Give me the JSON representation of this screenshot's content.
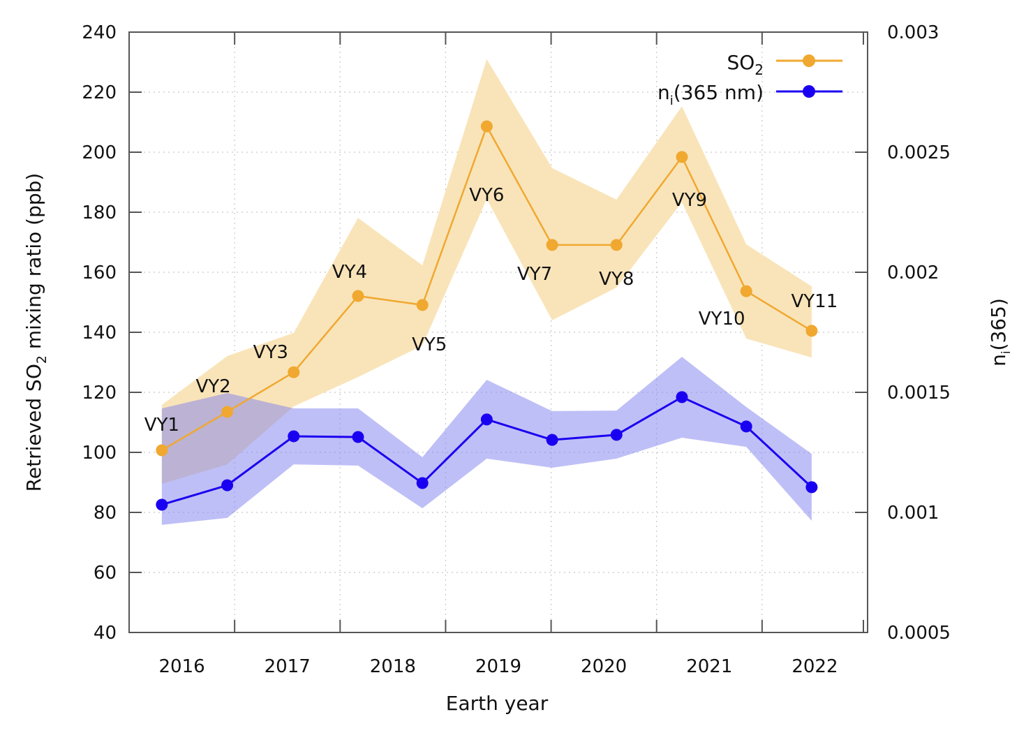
{
  "chart_data": {
    "type": "line",
    "title": "",
    "xlabel": "Earth year",
    "ylabel_left": {
      "main": "Retrieved SO",
      "sub": "2",
      "rest": " mixing ratio (ppb)"
    },
    "ylabel_right": {
      "main": "n",
      "sub": "i",
      "rest": "(365)"
    },
    "xlim": [
      2016,
      2023
    ],
    "x_tick_labels": [
      "2016",
      "2017",
      "2018",
      "2019",
      "2020",
      "2021",
      "2022"
    ],
    "x_tick_label_positions": [
      2016.5,
      2017.5,
      2018.5,
      2019.5,
      2020.5,
      2021.5,
      2022.5
    ],
    "x_tick_marks": [
      2017,
      2018,
      2019,
      2020,
      2021,
      2022,
      2023
    ],
    "ylim_left": [
      40,
      240
    ],
    "y_ticks_left": [
      40,
      60,
      80,
      100,
      120,
      140,
      160,
      180,
      200,
      220,
      240
    ],
    "y_tick_labels_left": [
      "40",
      "60",
      "80",
      "100",
      "120",
      "140",
      "160",
      "180",
      "200",
      "220",
      "240"
    ],
    "ylim_right": [
      0.0005,
      0.003
    ],
    "y_ticks_right": [
      0.0005,
      0.001,
      0.0015,
      0.002,
      0.0025,
      0.003
    ],
    "y_tick_labels_right": [
      "0.0005",
      "0.001",
      "0.0015",
      "0.002",
      "0.0025",
      "0.003"
    ],
    "grid": true,
    "legend_position": "top-right",
    "x": [
      2016.31,
      2016.93,
      2017.56,
      2018.17,
      2018.78,
      2019.39,
      2020.01,
      2020.62,
      2021.24,
      2021.85,
      2022.47
    ],
    "point_labels": [
      "VY1",
      "VY2",
      "VY3",
      "VY4",
      "VY5",
      "VY6",
      "VY7",
      "VY8",
      "VY9",
      "VY10",
      "VY11"
    ],
    "series": [
      {
        "name": "SO2",
        "legend": {
          "main": "SO",
          "sub": "2",
          "rest": ""
        },
        "axis": "left",
        "color": "#f0a830",
        "band_color": "#f9e4b9",
        "values": [
          100.7,
          113.5,
          126.7,
          152.1,
          149.1,
          208.6,
          169.1,
          169.1,
          198.4,
          153.7,
          140.5
        ],
        "upper": [
          115.8,
          132.1,
          139.8,
          178.1,
          162.3,
          231.0,
          194.7,
          184.2,
          215.3,
          169.3,
          155.3
        ],
        "lower": [
          89.5,
          96.0,
          115.3,
          125.1,
          135.6,
          184.4,
          144.0,
          154.9,
          183.3,
          137.9,
          131.6
        ]
      },
      {
        "name": "ni(365 nm)",
        "legend": {
          "main": "n",
          "sub": "i",
          "rest": "(365 nm)"
        },
        "axis": "right",
        "color": "#1a00f0",
        "band_color": "#8080f0",
        "values": [
          0.001032,
          0.001113,
          0.001317,
          0.001314,
          0.001122,
          0.001387,
          0.001302,
          0.001323,
          0.00148,
          0.001358,
          0.001105
        ],
        "upper": [
          0.001433,
          0.001497,
          0.001433,
          0.001433,
          0.00123,
          0.001552,
          0.001422,
          0.001424,
          0.001648,
          0.001439,
          0.001244
        ],
        "lower": [
          0.000948,
          0.000977,
          0.0012,
          0.001195,
          0.001017,
          0.001224,
          0.001186,
          0.001224,
          0.001311,
          0.001273,
          0.000965
        ]
      }
    ]
  }
}
